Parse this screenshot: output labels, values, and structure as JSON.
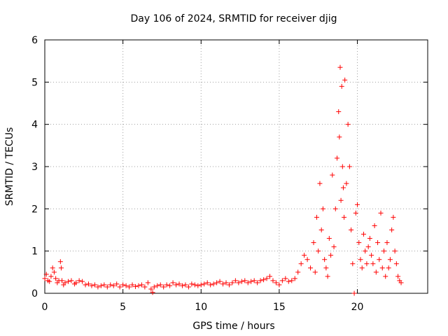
{
  "chart_data": {
    "type": "scatter",
    "title": "Day 106 of 2024, SRMTID for receiver djig",
    "xlabel": "GPS time / hours",
    "ylabel": "SRMTID / TECUs",
    "xlim": [
      0,
      24.5
    ],
    "ylim": [
      0,
      6
    ],
    "xticks": [
      "0",
      "5",
      "10",
      "15",
      "20"
    ],
    "yticks": [
      "0",
      "1",
      "2",
      "3",
      "4",
      "5",
      "6"
    ],
    "grid": true,
    "marker": "+",
    "series": [
      {
        "name": "SRMTID",
        "color": "#ff0000",
        "x": [
          0.0,
          0.1,
          0.2,
          0.3,
          0.4,
          0.5,
          0.6,
          0.7,
          0.8,
          0.9,
          1.0,
          1.05,
          1.1,
          1.2,
          1.3,
          1.5,
          1.7,
          1.9,
          2.0,
          2.2,
          2.4,
          2.6,
          2.8,
          3.0,
          3.2,
          3.4,
          3.6,
          3.8,
          4.0,
          4.2,
          4.4,
          4.6,
          4.8,
          5.0,
          5.2,
          5.4,
          5.6,
          5.8,
          6.0,
          6.2,
          6.4,
          6.6,
          6.8,
          6.9,
          7.0,
          7.2,
          7.4,
          7.6,
          7.8,
          8.0,
          8.2,
          8.4,
          8.6,
          8.8,
          9.0,
          9.2,
          9.4,
          9.6,
          9.8,
          10.0,
          10.2,
          10.4,
          10.6,
          10.8,
          11.0,
          11.2,
          11.4,
          11.6,
          11.8,
          12.0,
          12.2,
          12.4,
          12.6,
          12.8,
          13.0,
          13.2,
          13.4,
          13.6,
          13.8,
          14.0,
          14.2,
          14.4,
          14.6,
          14.8,
          15.0,
          15.2,
          15.4,
          15.6,
          15.8,
          16.0,
          16.2,
          16.4,
          16.6,
          16.8,
          17.0,
          17.2,
          17.3,
          17.4,
          17.5,
          17.6,
          17.7,
          17.8,
          17.9,
          18.0,
          18.1,
          18.2,
          18.3,
          18.4,
          18.5,
          18.6,
          18.7,
          18.8,
          18.85,
          18.9,
          18.95,
          19.0,
          19.05,
          19.1,
          19.15,
          19.2,
          19.3,
          19.4,
          19.5,
          19.6,
          19.7,
          19.8,
          19.9,
          20.0,
          20.1,
          20.2,
          20.3,
          20.4,
          20.5,
          20.6,
          20.7,
          20.8,
          20.9,
          21.0,
          21.1,
          21.2,
          21.3,
          21.4,
          21.5,
          21.6,
          21.7,
          21.8,
          21.9,
          22.0,
          22.1,
          22.2,
          22.3,
          22.4,
          22.5,
          22.6,
          22.7,
          22.8
        ],
        "y": [
          0.35,
          0.45,
          0.3,
          0.28,
          0.4,
          0.6,
          0.5,
          0.35,
          0.25,
          0.3,
          0.75,
          0.6,
          0.3,
          0.2,
          0.25,
          0.28,
          0.3,
          0.22,
          0.25,
          0.3,
          0.28,
          0.2,
          0.22,
          0.18,
          0.2,
          0.15,
          0.18,
          0.2,
          0.15,
          0.2,
          0.18,
          0.22,
          0.15,
          0.2,
          0.18,
          0.15,
          0.2,
          0.16,
          0.18,
          0.2,
          0.15,
          0.25,
          0.1,
          0.02,
          0.15,
          0.18,
          0.2,
          0.15,
          0.2,
          0.18,
          0.25,
          0.2,
          0.22,
          0.18,
          0.2,
          0.15,
          0.22,
          0.2,
          0.18,
          0.2,
          0.22,
          0.25,
          0.2,
          0.22,
          0.25,
          0.28,
          0.22,
          0.25,
          0.2,
          0.25,
          0.3,
          0.25,
          0.28,
          0.3,
          0.25,
          0.28,
          0.3,
          0.25,
          0.3,
          0.32,
          0.35,
          0.4,
          0.3,
          0.25,
          0.2,
          0.3,
          0.35,
          0.28,
          0.3,
          0.35,
          0.5,
          0.7,
          0.9,
          0.8,
          0.6,
          1.2,
          0.5,
          1.8,
          1.0,
          2.6,
          1.5,
          2.0,
          0.8,
          0.6,
          0.4,
          1.3,
          0.9,
          2.8,
          1.1,
          2.0,
          3.2,
          4.3,
          3.7,
          5.35,
          2.2,
          4.9,
          3.0,
          2.5,
          1.8,
          5.05,
          2.6,
          4.0,
          3.0,
          1.5,
          0.7,
          0.0,
          1.9,
          2.1,
          1.2,
          0.8,
          0.6,
          1.4,
          1.0,
          0.7,
          1.1,
          1.3,
          0.9,
          0.7,
          1.6,
          0.5,
          1.2,
          0.8,
          1.9,
          0.6,
          1.0,
          0.4,
          1.2,
          0.6,
          0.8,
          1.5,
          1.8,
          1.0,
          0.7,
          0.4,
          0.3,
          0.25
        ]
      }
    ]
  }
}
